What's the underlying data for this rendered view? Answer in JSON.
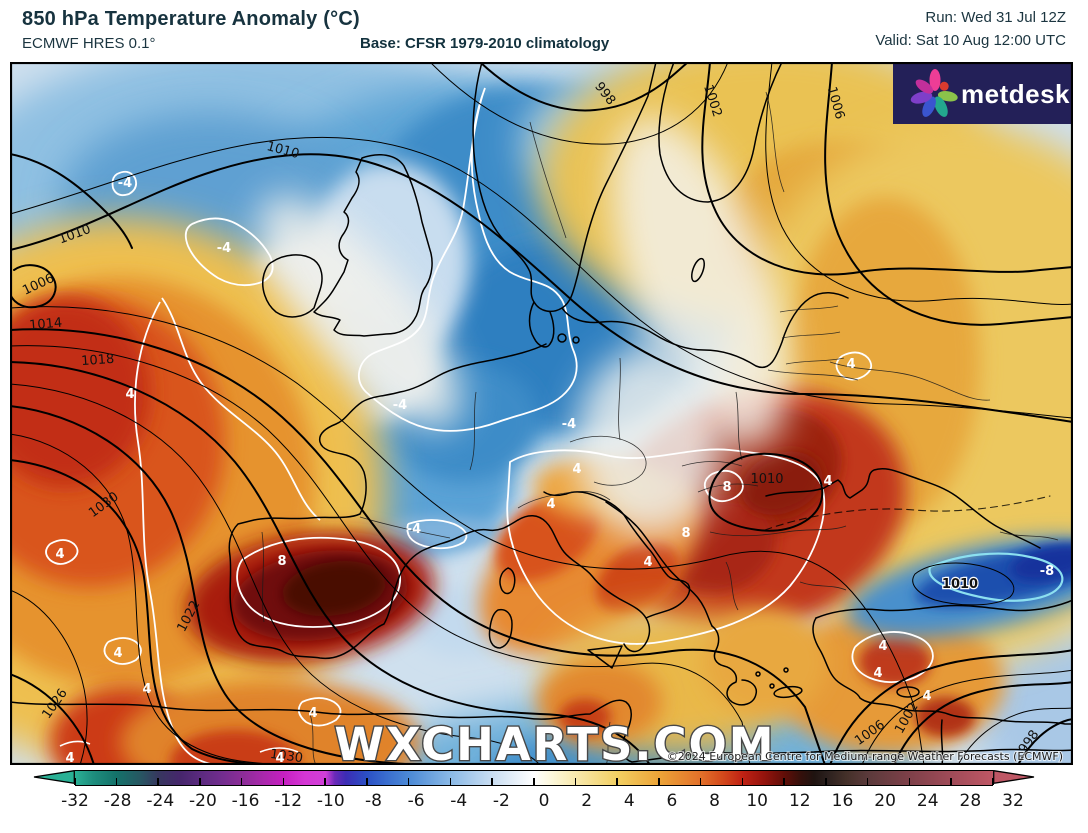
{
  "header": {
    "title": "850 hPa Temperature Anomaly (°C)",
    "subtitle": "ECMWF HRES 0.1°",
    "base": "Base: CFSR 1979-2010 climatology",
    "run": "Run: Wed 31 Jul 12Z",
    "valid": "Valid: Sat 10 Aug 12:00 UTC"
  },
  "logo": {
    "brand": "metdesk",
    "bg_color": "#232058",
    "petal_colors": [
      "#ee3d96",
      "#d93b2e",
      "#8bc34a",
      "#23a88e",
      "#3a55cf",
      "#7e3fc9",
      "#c22f9b"
    ]
  },
  "map": {
    "watermark": "WXCHARTS.COM",
    "copyright": "©2024 European Centre for Medium-range Weather Forecasts (ECMWF)",
    "isobar_labels": [
      "998",
      "1002",
      "1006",
      "1010",
      "1010",
      "1006",
      "1014",
      "1018",
      "1022",
      "1026",
      "1030",
      "1030",
      "1010",
      "1010",
      "1006",
      "1002",
      "998"
    ],
    "anomaly_labels": [
      "-4",
      "-4",
      "-4",
      "-4",
      "-4",
      "4",
      "4",
      "4",
      "4",
      "8",
      "8",
      "8",
      "4",
      "4",
      "4",
      "4",
      "4",
      "4",
      "4",
      "-8",
      "4",
      "4",
      "4",
      "4"
    ],
    "cold_color": "#3e8cc8",
    "warm_color": "#d9541e",
    "hot_core_color": "#490806"
  },
  "colorbar": {
    "ticks": [
      "-32",
      "-28",
      "-24",
      "-20",
      "-16",
      "-12",
      "-10",
      "-8",
      "-6",
      "-4",
      "-2",
      "0",
      "2",
      "4",
      "6",
      "8",
      "10",
      "12",
      "16",
      "20",
      "24",
      "28",
      "32"
    ],
    "left_arrow_color": "#2ab195",
    "right_arrow_color": "#bf5765",
    "stops": [
      {
        "p": 0,
        "c": "#2ab195"
      },
      {
        "p": 2,
        "c": "#1e8d7d"
      },
      {
        "p": 4.5,
        "c": "#14726a"
      },
      {
        "p": 7,
        "c": "#265862"
      },
      {
        "p": 9.1,
        "c": "#37375f"
      },
      {
        "p": 11.5,
        "c": "#46266c"
      },
      {
        "p": 13.6,
        "c": "#5a2a7e"
      },
      {
        "p": 16,
        "c": "#722d8e"
      },
      {
        "p": 18.2,
        "c": "#8b2d97"
      },
      {
        "p": 20.5,
        "c": "#a928ac"
      },
      {
        "p": 22.7,
        "c": "#c51fc0"
      },
      {
        "p": 25,
        "c": "#d436d4"
      },
      {
        "p": 27.3,
        "c": "#d03fd8"
      },
      {
        "p": 28.3,
        "c": "#6a2ab8"
      },
      {
        "p": 29.5,
        "c": "#3c2cb4"
      },
      {
        "p": 31.8,
        "c": "#2b50c5"
      },
      {
        "p": 34,
        "c": "#3a6ecf"
      },
      {
        "p": 36.4,
        "c": "#4c8ad6"
      },
      {
        "p": 40.9,
        "c": "#8ab9e6"
      },
      {
        "p": 45.5,
        "c": "#cadef2"
      },
      {
        "p": 50,
        "c": "#ffffff"
      },
      {
        "p": 52,
        "c": "#fdf8da"
      },
      {
        "p": 54.5,
        "c": "#f8e9ae"
      },
      {
        "p": 59.1,
        "c": "#f2cf62"
      },
      {
        "p": 63.6,
        "c": "#eca438"
      },
      {
        "p": 68.2,
        "c": "#e2702a"
      },
      {
        "p": 70.5,
        "c": "#d44a1c"
      },
      {
        "p": 72.7,
        "c": "#c02214"
      },
      {
        "p": 75,
        "c": "#96140d"
      },
      {
        "p": 77.3,
        "c": "#600e08"
      },
      {
        "p": 79,
        "c": "#36100b"
      },
      {
        "p": 80.5,
        "c": "#1f1310"
      },
      {
        "p": 81.8,
        "c": "#2a1f1d"
      },
      {
        "p": 84,
        "c": "#443029"
      },
      {
        "p": 86.4,
        "c": "#5b3a3b"
      },
      {
        "p": 90.9,
        "c": "#7e4049"
      },
      {
        "p": 95.5,
        "c": "#a04b58"
      },
      {
        "p": 100,
        "c": "#bf5765"
      }
    ]
  }
}
